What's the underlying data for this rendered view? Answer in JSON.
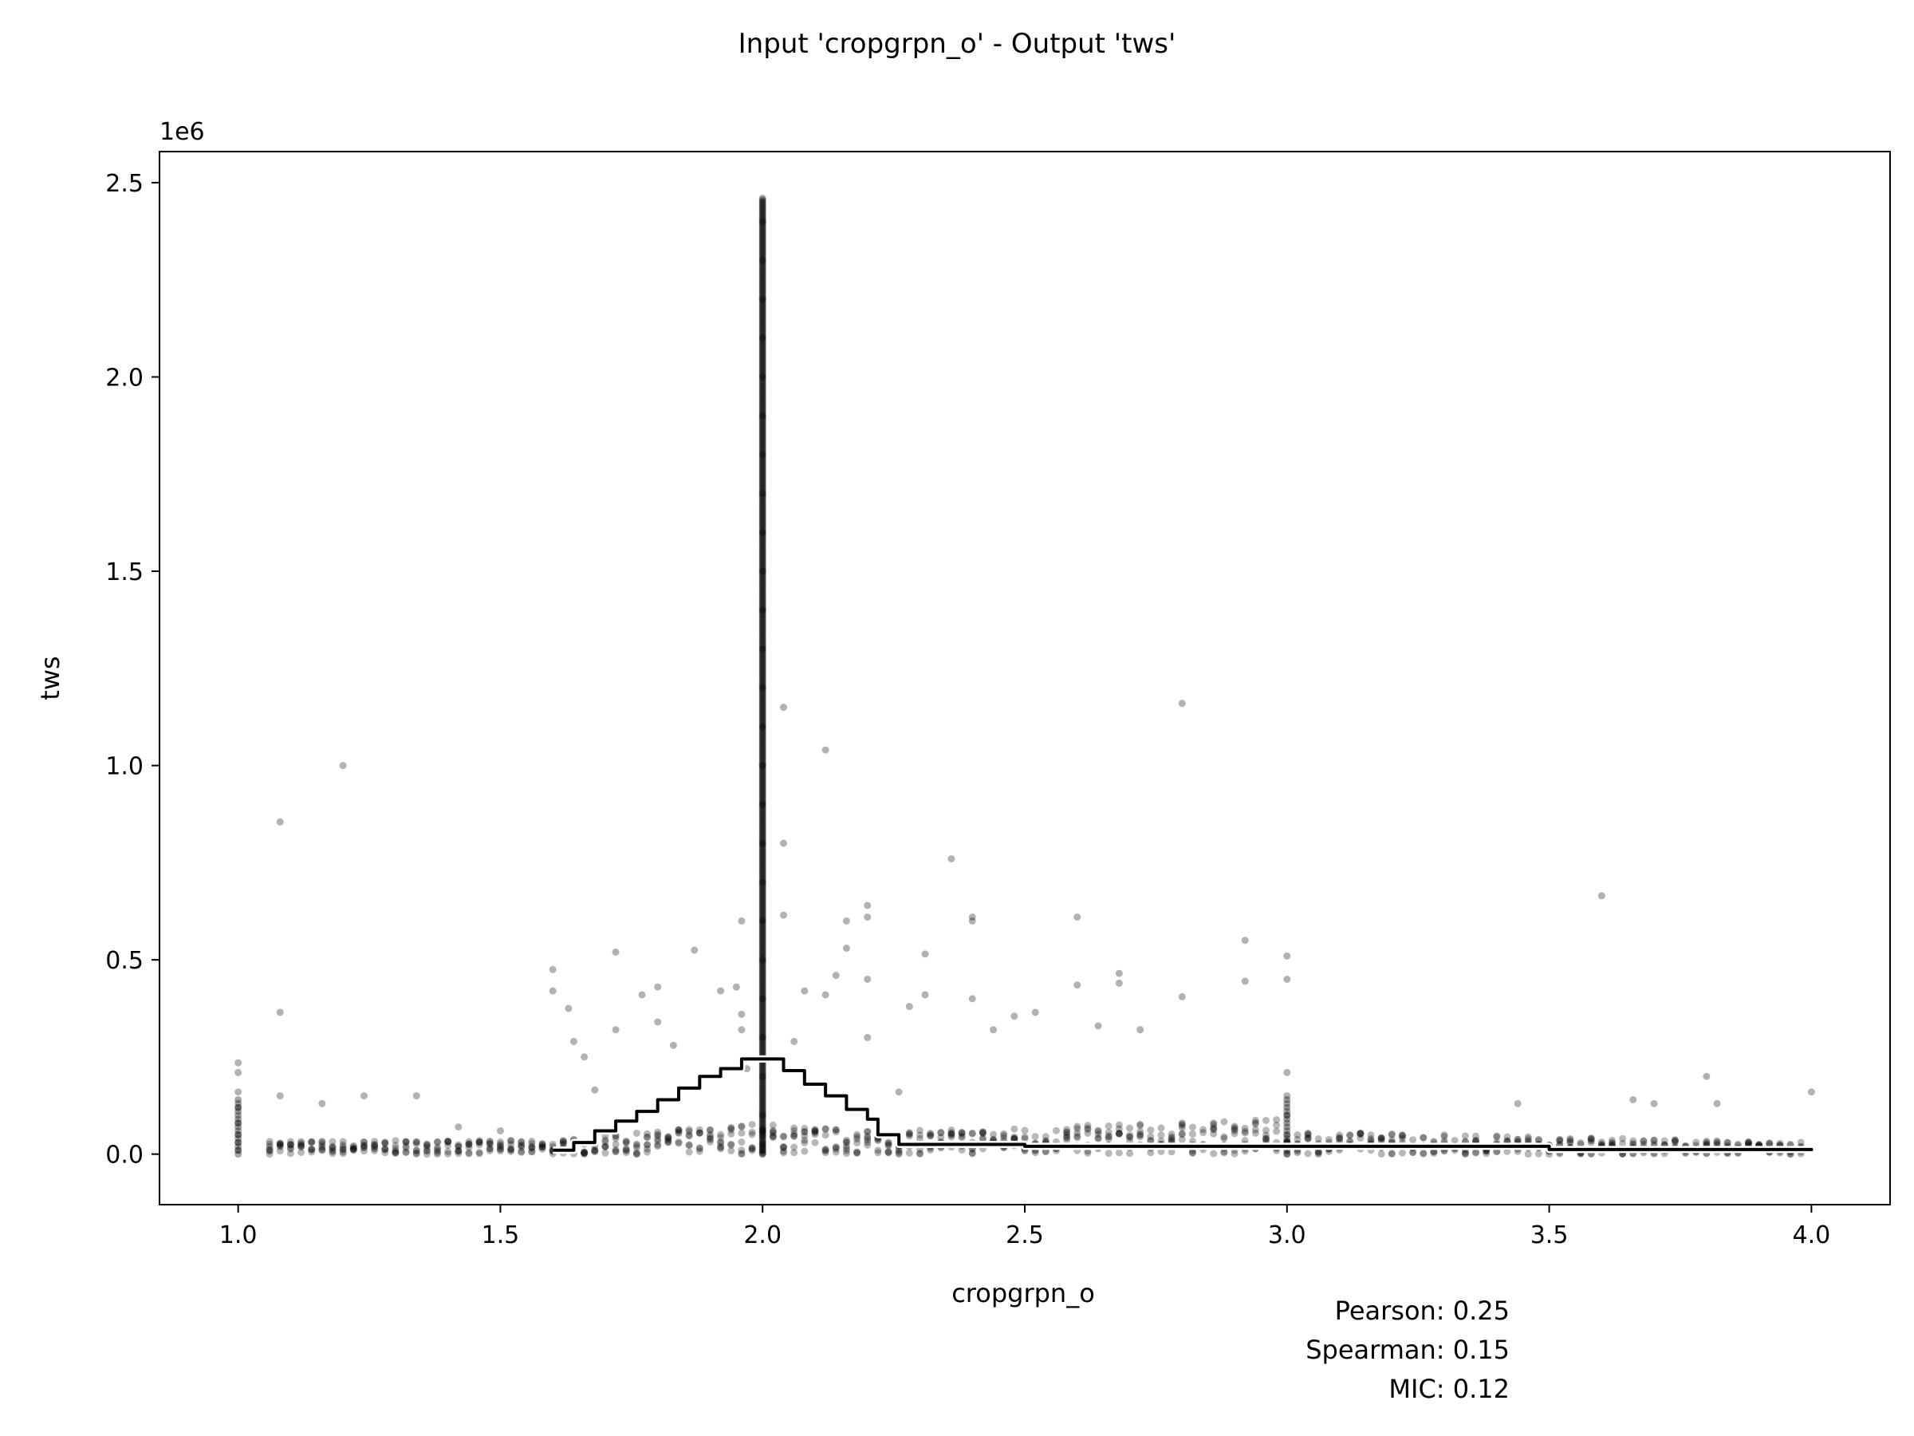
{
  "chart_data": {
    "type": "scatter",
    "title": "Input 'cropgrpn_o' - Output 'tws'",
    "xlabel": "cropgrpn_o",
    "ylabel": "tws",
    "y_offset_text": "1e6",
    "xlim": [
      0.85,
      4.15
    ],
    "ylim": [
      -0.13,
      2.58
    ],
    "y_units_note": "y values are expressed in units of 1e6",
    "x_ticks": [
      1.0,
      1.5,
      2.0,
      2.5,
      3.0,
      3.5,
      4.0
    ],
    "x_tick_labels": [
      "1.0",
      "1.5",
      "2.0",
      "2.5",
      "3.0",
      "3.5",
      "4.0"
    ],
    "y_ticks": [
      0.0,
      0.5,
      1.0,
      1.5,
      2.0,
      2.5
    ],
    "y_tick_labels": [
      "0.0",
      "0.5",
      "1.0",
      "1.5",
      "2.0",
      "2.5"
    ],
    "grid": false,
    "colors": {
      "points": "#000000",
      "line": "#000000",
      "line_halo": "#ffffff"
    },
    "points": [
      {
        "x": 1.0,
        "y": 0.235
      },
      {
        "x": 1.0,
        "y": 0.21
      },
      {
        "x": 1.0,
        "y": 0.16
      },
      {
        "x": 1.0,
        "y": 0.12
      },
      {
        "x": 1.0,
        "y": 0.08
      },
      {
        "x": 1.0,
        "y": 0.05
      },
      {
        "x": 1.0,
        "y": 0.03
      },
      {
        "x": 1.0,
        "y": 0.01
      },
      {
        "x": 1.08,
        "y": 0.855
      },
      {
        "x": 1.08,
        "y": 0.365
      },
      {
        "x": 1.08,
        "y": 0.15
      },
      {
        "x": 1.2,
        "y": 1.0
      },
      {
        "x": 1.16,
        "y": 0.13
      },
      {
        "x": 1.24,
        "y": 0.15
      },
      {
        "x": 1.34,
        "y": 0.15
      },
      {
        "x": 1.5,
        "y": 0.06
      },
      {
        "x": 1.42,
        "y": 0.07
      },
      {
        "x": 1.6,
        "y": 0.475
      },
      {
        "x": 1.6,
        "y": 0.42
      },
      {
        "x": 1.63,
        "y": 0.375
      },
      {
        "x": 1.64,
        "y": 0.29
      },
      {
        "x": 1.66,
        "y": 0.25
      },
      {
        "x": 1.68,
        "y": 0.165
      },
      {
        "x": 1.72,
        "y": 0.52
      },
      {
        "x": 1.72,
        "y": 0.32
      },
      {
        "x": 1.77,
        "y": 0.41
      },
      {
        "x": 1.8,
        "y": 0.43
      },
      {
        "x": 1.8,
        "y": 0.34
      },
      {
        "x": 1.83,
        "y": 0.28
      },
      {
        "x": 1.87,
        "y": 0.525
      },
      {
        "x": 1.92,
        "y": 0.42
      },
      {
        "x": 1.95,
        "y": 0.43
      },
      {
        "x": 1.96,
        "y": 0.6
      },
      {
        "x": 1.96,
        "y": 0.36
      },
      {
        "x": 1.96,
        "y": 0.32
      },
      {
        "x": 1.97,
        "y": 0.22
      },
      {
        "x": 2.0,
        "y": 2.46
      },
      {
        "x": 2.0,
        "y": 2.4
      },
      {
        "x": 2.0,
        "y": 2.3
      },
      {
        "x": 2.0,
        "y": 2.2
      },
      {
        "x": 2.0,
        "y": 2.1
      },
      {
        "x": 2.0,
        "y": 2.0
      },
      {
        "x": 2.0,
        "y": 1.9
      },
      {
        "x": 2.0,
        "y": 1.8
      },
      {
        "x": 2.0,
        "y": 1.7
      },
      {
        "x": 2.0,
        "y": 1.6
      },
      {
        "x": 2.0,
        "y": 1.5
      },
      {
        "x": 2.0,
        "y": 1.4
      },
      {
        "x": 2.0,
        "y": 1.3
      },
      {
        "x": 2.0,
        "y": 1.2
      },
      {
        "x": 2.0,
        "y": 1.1
      },
      {
        "x": 2.0,
        "y": 1.0
      },
      {
        "x": 2.0,
        "y": 0.9
      },
      {
        "x": 2.0,
        "y": 0.8
      },
      {
        "x": 2.0,
        "y": 0.7
      },
      {
        "x": 2.0,
        "y": 0.6
      },
      {
        "x": 2.0,
        "y": 0.5
      },
      {
        "x": 2.0,
        "y": 0.4
      },
      {
        "x": 2.0,
        "y": 0.3
      },
      {
        "x": 2.0,
        "y": 0.2
      },
      {
        "x": 2.0,
        "y": 0.1
      },
      {
        "x": 2.0,
        "y": 0.02
      },
      {
        "x": 2.04,
        "y": 1.15
      },
      {
        "x": 2.04,
        "y": 0.8
      },
      {
        "x": 2.04,
        "y": 0.615
      },
      {
        "x": 2.06,
        "y": 0.29
      },
      {
        "x": 2.08,
        "y": 0.42
      },
      {
        "x": 2.12,
        "y": 1.04
      },
      {
        "x": 2.12,
        "y": 0.41
      },
      {
        "x": 2.14,
        "y": 0.46
      },
      {
        "x": 2.16,
        "y": 0.6
      },
      {
        "x": 2.16,
        "y": 0.53
      },
      {
        "x": 2.2,
        "y": 0.64
      },
      {
        "x": 2.2,
        "y": 0.61
      },
      {
        "x": 2.2,
        "y": 0.45
      },
      {
        "x": 2.2,
        "y": 0.3
      },
      {
        "x": 2.26,
        "y": 0.16
      },
      {
        "x": 2.28,
        "y": 0.38
      },
      {
        "x": 2.31,
        "y": 0.515
      },
      {
        "x": 2.31,
        "y": 0.41
      },
      {
        "x": 2.36,
        "y": 0.76
      },
      {
        "x": 2.4,
        "y": 0.61
      },
      {
        "x": 2.4,
        "y": 0.6
      },
      {
        "x": 2.4,
        "y": 0.4
      },
      {
        "x": 2.44,
        "y": 0.32
      },
      {
        "x": 2.48,
        "y": 0.355
      },
      {
        "x": 2.52,
        "y": 0.365
      },
      {
        "x": 2.6,
        "y": 0.61
      },
      {
        "x": 2.6,
        "y": 0.435
      },
      {
        "x": 2.64,
        "y": 0.33
      },
      {
        "x": 2.68,
        "y": 0.465
      },
      {
        "x": 2.68,
        "y": 0.44
      },
      {
        "x": 2.72,
        "y": 0.32
      },
      {
        "x": 2.8,
        "y": 1.16
      },
      {
        "x": 2.8,
        "y": 0.405
      },
      {
        "x": 2.92,
        "y": 0.55
      },
      {
        "x": 2.92,
        "y": 0.445
      },
      {
        "x": 3.0,
        "y": 0.51
      },
      {
        "x": 3.0,
        "y": 0.45
      },
      {
        "x": 3.0,
        "y": 0.21
      },
      {
        "x": 3.0,
        "y": 0.15
      },
      {
        "x": 3.0,
        "y": 0.1
      },
      {
        "x": 3.44,
        "y": 0.13
      },
      {
        "x": 3.6,
        "y": 0.665
      },
      {
        "x": 3.66,
        "y": 0.14
      },
      {
        "x": 3.7,
        "y": 0.13
      },
      {
        "x": 3.8,
        "y": 0.2
      },
      {
        "x": 3.82,
        "y": 0.13
      },
      {
        "x": 4.0,
        "y": 0.16
      }
    ],
    "trend_line": {
      "x": [
        1.6,
        1.64,
        1.68,
        1.72,
        1.76,
        1.8,
        1.84,
        1.88,
        1.92,
        1.96,
        2.0,
        2.04,
        2.08,
        2.12,
        2.16,
        2.2,
        2.22,
        2.26,
        2.5,
        3.0,
        3.5,
        4.0
      ],
      "y": [
        0.01,
        0.03,
        0.06,
        0.085,
        0.11,
        0.14,
        0.17,
        0.2,
        0.22,
        0.245,
        0.245,
        0.215,
        0.18,
        0.15,
        0.115,
        0.09,
        0.05,
        0.025,
        0.02,
        0.02,
        0.012,
        0.008
      ]
    },
    "annotations": [
      "Pearson: 0.25",
      "Spearman: 0.15",
      "MIC: 0.12"
    ]
  }
}
